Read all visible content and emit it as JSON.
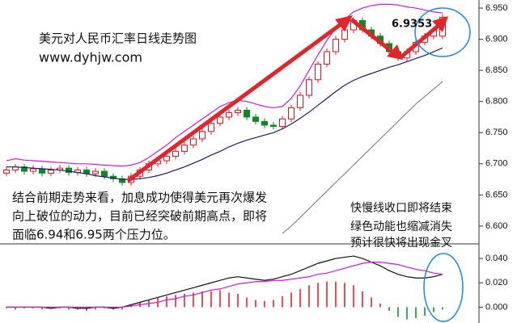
{
  "chart_data": [
    {
      "type": "candlestick",
      "title": "美元对人民币汇率日线走势图",
      "annotations": [
        "www.dyhjw.com",
        "6.9353",
        "结合前期走势来看，加息成功使得美元再次爆发",
        "向上破位的动力，目前已经突破前期高点，即将",
        "面临6.94和6.95两个压力位。",
        "快慢线收口即将结束",
        "绿色动能也缩减消失",
        "预计很快将出现金叉"
      ],
      "ylim": [
        6.574,
        6.963
      ],
      "yticks": [
        {
          "value": 6.6,
          "label": "6.600"
        },
        {
          "value": 6.65,
          "label": "6.650"
        },
        {
          "value": 6.7,
          "label": "6.700"
        },
        {
          "value": 6.75,
          "label": "6.750"
        },
        {
          "value": 6.8,
          "label": "6.800"
        },
        {
          "value": 6.85,
          "label": "6.850"
        },
        {
          "value": 6.9,
          "label": "6.900"
        },
        {
          "value": 6.95,
          "label": "6.950"
        }
      ],
      "up_color": "#e8141b",
      "down_color": "#0a8a20",
      "open": [
        6.685,
        6.69,
        6.695,
        6.688,
        6.692,
        6.685,
        6.69,
        6.693,
        6.686,
        6.69,
        6.684,
        6.688,
        6.68,
        6.676,
        6.67,
        6.68,
        6.69,
        6.7,
        6.705,
        6.712,
        6.72,
        6.73,
        6.74,
        6.752,
        6.765,
        6.775,
        6.782,
        6.786,
        6.775,
        6.768,
        6.762,
        6.76,
        6.772,
        6.79,
        6.81,
        6.835,
        6.86,
        6.88,
        6.9,
        6.915,
        6.93,
        6.915,
        6.905,
        6.893,
        6.88,
        6.87,
        6.88,
        6.895,
        6.905,
        6.905
      ],
      "high": [
        6.695,
        6.7,
        6.7,
        6.697,
        6.697,
        6.695,
        6.698,
        6.698,
        6.695,
        6.695,
        6.693,
        6.693,
        6.685,
        6.681,
        6.685,
        6.695,
        6.705,
        6.71,
        6.717,
        6.725,
        6.735,
        6.745,
        6.757,
        6.77,
        6.78,
        6.787,
        6.791,
        6.791,
        6.78,
        6.773,
        6.767,
        6.777,
        6.795,
        6.815,
        6.84,
        6.865,
        6.885,
        6.905,
        6.92,
        6.935,
        6.935,
        6.92,
        6.91,
        6.898,
        6.885,
        6.885,
        6.9,
        6.91,
        6.92,
        6.9403
      ],
      "low": [
        6.68,
        6.685,
        6.683,
        6.683,
        6.68,
        6.68,
        6.685,
        6.681,
        6.681,
        6.679,
        6.679,
        6.675,
        6.671,
        6.665,
        6.665,
        6.675,
        6.685,
        6.695,
        6.7,
        6.707,
        6.715,
        6.725,
        6.735,
        6.747,
        6.76,
        6.77,
        6.777,
        6.77,
        6.763,
        6.757,
        6.755,
        6.755,
        6.767,
        6.785,
        6.805,
        6.83,
        6.855,
        6.875,
        6.895,
        6.91,
        6.91,
        6.9,
        6.888,
        6.875,
        6.865,
        6.865,
        6.875,
        6.89,
        6.9,
        6.9
      ],
      "close": [
        6.69,
        6.695,
        6.688,
        6.692,
        6.685,
        6.69,
        6.693,
        6.686,
        6.69,
        6.684,
        6.688,
        6.68,
        6.676,
        6.67,
        6.68,
        6.69,
        6.7,
        6.705,
        6.712,
        6.72,
        6.73,
        6.74,
        6.752,
        6.765,
        6.775,
        6.782,
        6.786,
        6.775,
        6.768,
        6.762,
        6.76,
        6.772,
        6.79,
        6.81,
        6.835,
        6.86,
        6.88,
        6.9,
        6.915,
        6.93,
        6.915,
        6.905,
        6.893,
        6.88,
        6.87,
        6.88,
        6.895,
        6.905,
        6.915,
        6.9353
      ],
      "series": [
        {
          "color": "#d21ad2",
          "values": [
            6.705,
            6.708,
            6.706,
            6.705,
            6.704,
            6.703,
            6.702,
            6.701,
            6.7,
            6.7,
            6.699,
            6.698,
            6.697,
            6.696,
            6.698,
            6.702,
            6.71,
            6.72,
            6.73,
            6.742,
            6.752,
            6.762,
            6.772,
            6.782,
            6.792,
            6.798,
            6.802,
            6.8,
            6.796,
            6.792,
            6.79,
            6.792,
            6.805,
            6.825,
            6.85,
            6.875,
            6.898,
            6.918,
            6.932,
            6.944,
            6.95,
            6.954,
            6.956,
            6.956,
            6.955,
            6.952,
            6.95,
            6.947,
            6.944,
            6.942
          ]
        },
        {
          "color": "#1a1a6e",
          "values": [
            6.695,
            6.695,
            6.694,
            6.693,
            6.692,
            6.691,
            6.69,
            6.688,
            6.686,
            6.684,
            6.681,
            6.679,
            6.677,
            6.675,
            6.675,
            6.676,
            6.678,
            6.681,
            6.685,
            6.69,
            6.695,
            6.701,
            6.707,
            6.714,
            6.72,
            6.727,
            6.733,
            6.738,
            6.742,
            6.746,
            6.75,
            6.756,
            6.764,
            6.773,
            6.783,
            6.794,
            6.805,
            6.816,
            6.826,
            6.834,
            6.84,
            6.845,
            6.85,
            6.855,
            6.859,
            6.864,
            6.869,
            6.874,
            6.88,
            6.886
          ]
        },
        {
          "color": "#888888",
          "values": [
            null,
            null,
            null,
            null,
            null,
            null,
            null,
            null,
            null,
            null,
            null,
            null,
            null,
            null,
            null,
            null,
            null,
            null,
            null,
            null,
            null,
            null,
            null,
            null,
            null,
            null,
            null,
            null,
            null,
            null,
            null,
            6.588,
            6.6,
            6.614,
            6.628,
            6.642,
            6.656,
            6.67,
            6.684,
            6.698,
            6.712,
            6.726,
            6.74,
            6.754,
            6.768,
            6.782,
            6.796,
            6.808,
            6.82,
            6.832
          ]
        }
      ]
    },
    {
      "type": "bar",
      "ylim": [
        -0.013,
        0.052
      ],
      "yticks": [
        {
          "value": 0,
          "label": "0.000"
        },
        {
          "value": 0.02,
          "label": "0.020"
        },
        {
          "value": 0.04,
          "label": "0.040"
        }
      ],
      "up_color": "#e8141b",
      "down_color": "#0a8a20",
      "values": [
        -0.001,
        -0.002,
        -0.001,
        -0.001,
        -0.002,
        -0.001,
        -0.001,
        -0.002,
        -0.002,
        -0.003,
        -0.002,
        -0.001,
        -0.002,
        -0.002,
        0.002,
        0.004,
        0.006,
        0.008,
        0.009,
        0.01,
        0.011,
        0.012,
        0.013,
        0.013,
        0.014,
        0.012,
        0.011,
        0.008,
        0.006,
        0.005,
        0.006,
        0.009,
        0.012,
        0.015,
        0.018,
        0.02,
        0.021,
        0.021,
        0.02,
        0.018,
        0.013,
        0.008,
        0.003,
        -0.003,
        -0.008,
        -0.01,
        -0.009,
        -0.007,
        -0.004,
        -0.002
      ],
      "series": [
        {
          "color": "#111111",
          "values": [
            0.0,
            0.0,
            0.0,
            0.0,
            0.0,
            -0.001,
            0.0,
            0.0,
            -0.001,
            -0.001,
            0.0,
            0.0,
            -0.001,
            0.0,
            0.002,
            0.004,
            0.006,
            0.008,
            0.01,
            0.012,
            0.014,
            0.016,
            0.018,
            0.02,
            0.022,
            0.024,
            0.025,
            0.024,
            0.023,
            0.022,
            0.023,
            0.025,
            0.027,
            0.03,
            0.033,
            0.036,
            0.038,
            0.04,
            0.041,
            0.042,
            0.04,
            0.037,
            0.034,
            0.03,
            0.027,
            0.025,
            0.024,
            0.024,
            0.025,
            0.027
          ]
        },
        {
          "color": "#d21ad2",
          "values": [
            0.0,
            0.0,
            0.0,
            0.0,
            0.0,
            0.0,
            0.0,
            0.0,
            0.0,
            0.0,
            0.0,
            0.0,
            0.0,
            0.0,
            0.001,
            0.002,
            0.003,
            0.004,
            0.006,
            0.007,
            0.009,
            0.01,
            0.012,
            0.014,
            0.015,
            0.017,
            0.019,
            0.02,
            0.021,
            0.021,
            0.022,
            0.022,
            0.023,
            0.024,
            0.025,
            0.027,
            0.028,
            0.03,
            0.032,
            0.034,
            0.036,
            0.037,
            0.037,
            0.036,
            0.035,
            0.033,
            0.031,
            0.03,
            0.028,
            0.027
          ]
        }
      ]
    }
  ]
}
